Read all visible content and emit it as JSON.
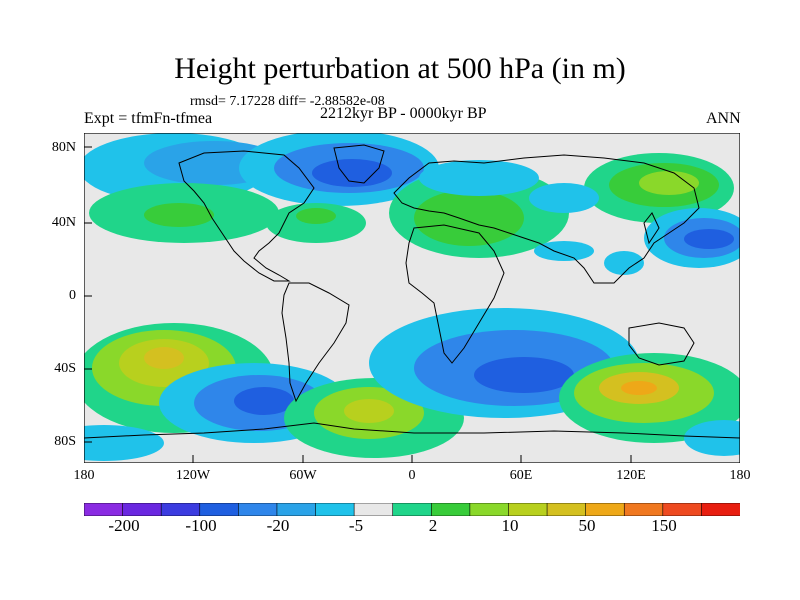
{
  "header": {
    "title": "Height perturbation at 500 hPa (in m)",
    "stats": "rmsd= 7.17228 diff= -2.88582e-08",
    "experiment": "Expt = tfmFn-tfmea",
    "period": "2212kyr BP - 0000kyr BP",
    "season": "ANN"
  },
  "axes": {
    "x_ticks": [
      "180",
      "120W",
      "60W",
      "0",
      "60E",
      "120E",
      "180"
    ],
    "y_ticks": [
      "80N",
      "40N",
      "0",
      "40S",
      "80S"
    ]
  },
  "colorbar": {
    "labels": [
      "-200",
      "-100",
      "-20",
      "-5",
      "2",
      "10",
      "50",
      "150"
    ],
    "colors": [
      "#8a2be2",
      "#6a27e0",
      "#3c3ce0",
      "#1f5fe0",
      "#2f86ea",
      "#2aa3e8",
      "#20c2ea",
      "#e8e8e8",
      "#20d58a",
      "#38cc3a",
      "#8ad82a",
      "#b8d01e",
      "#d4c020",
      "#eea818",
      "#f07820",
      "#ee4a20",
      "#e81e10"
    ]
  },
  "field_colors": {
    "land": "#ffffff",
    "coast": "#000000",
    "neutral": "#e8e8e8"
  }
}
